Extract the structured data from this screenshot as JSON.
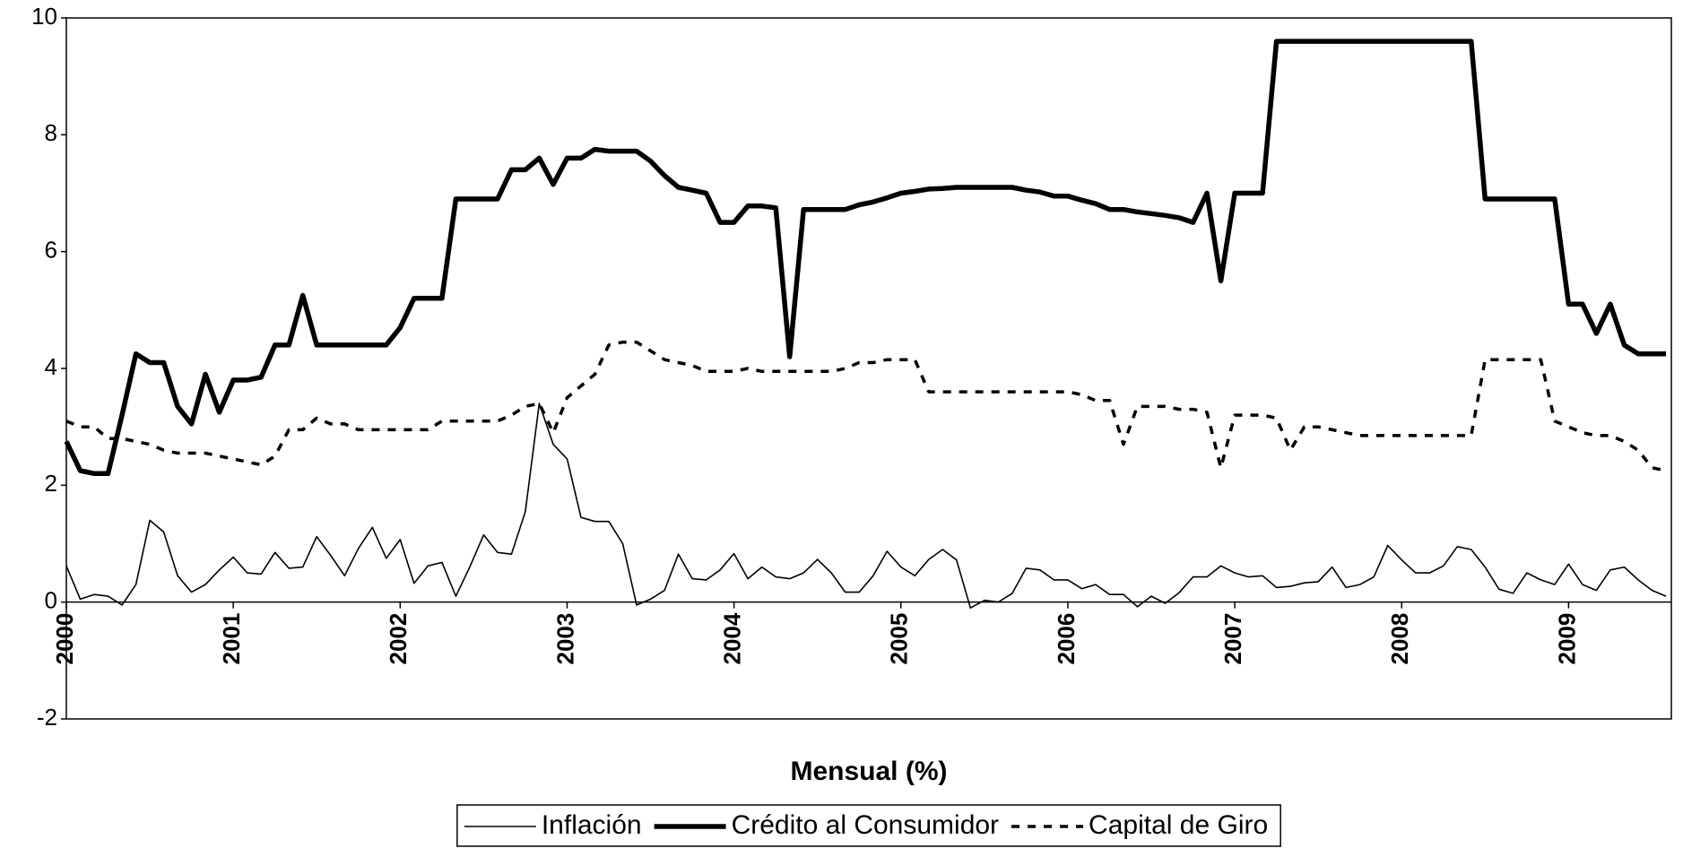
{
  "chart_data": {
    "type": "line",
    "xlabel": "Mensual (%)",
    "categories": [
      "2000",
      null,
      null,
      null,
      null,
      null,
      null,
      null,
      null,
      null,
      null,
      null,
      "2001",
      null,
      null,
      null,
      null,
      null,
      null,
      null,
      null,
      null,
      null,
      null,
      "2002",
      null,
      null,
      null,
      null,
      null,
      null,
      null,
      null,
      null,
      null,
      null,
      "2003",
      null,
      null,
      null,
      null,
      null,
      null,
      null,
      null,
      null,
      null,
      null,
      "2004",
      null,
      null,
      null,
      null,
      null,
      null,
      null,
      null,
      null,
      null,
      null,
      "2005",
      null,
      null,
      null,
      null,
      null,
      null,
      null,
      null,
      null,
      null,
      null,
      "2006",
      null,
      null,
      null,
      null,
      null,
      null,
      null,
      null,
      null,
      null,
      null,
      "2007",
      null,
      null,
      null,
      null,
      null,
      null,
      null,
      null,
      null,
      null,
      null,
      "2008",
      null,
      null,
      null,
      null,
      null,
      null,
      null,
      null,
      null,
      null,
      null,
      "2009",
      null,
      null,
      null,
      null,
      null,
      null,
      null
    ],
    "ylim": [
      -2,
      10
    ],
    "yticks": [
      -2,
      0,
      2,
      4,
      6,
      8,
      10
    ],
    "grid": false,
    "series": [
      {
        "name": "Inflación",
        "color": "#000000",
        "style": "thin",
        "values": [
          0.62,
          0.05,
          0.13,
          0.1,
          -0.05,
          0.3,
          1.4,
          1.2,
          0.45,
          0.17,
          0.3,
          0.55,
          0.77,
          0.5,
          0.48,
          0.85,
          0.58,
          0.6,
          1.12,
          0.8,
          0.45,
          0.92,
          1.28,
          0.75,
          1.07,
          0.32,
          0.62,
          0.68,
          0.1,
          0.6,
          1.15,
          0.85,
          0.82,
          1.55,
          3.4,
          2.7,
          2.45,
          1.45,
          1.38,
          1.38,
          1.0,
          -0.05,
          0.05,
          0.2,
          0.82,
          0.4,
          0.38,
          0.55,
          0.83,
          0.4,
          0.6,
          0.43,
          0.4,
          0.5,
          0.73,
          0.5,
          0.17,
          0.17,
          0.45,
          0.87,
          0.6,
          0.45,
          0.73,
          0.9,
          0.72,
          -0.1,
          0.03,
          0.0,
          0.15,
          0.58,
          0.55,
          0.38,
          0.38,
          0.23,
          0.3,
          0.13,
          0.13,
          -0.08,
          0.1,
          -0.02,
          0.16,
          0.43,
          0.43,
          0.62,
          0.5,
          0.43,
          0.45,
          0.25,
          0.27,
          0.33,
          0.35,
          0.6,
          0.25,
          0.3,
          0.43,
          0.97,
          0.72,
          0.5,
          0.5,
          0.62,
          0.95,
          0.9,
          0.6,
          0.22,
          0.15,
          0.5,
          0.38,
          0.3,
          0.65,
          0.3,
          0.2,
          0.55,
          0.6,
          0.38,
          0.2,
          0.1
        ]
      },
      {
        "name": "Crédito al Consumidor",
        "color": "#000000",
        "style": "thick",
        "values": [
          2.75,
          2.25,
          2.2,
          2.2,
          3.2,
          4.25,
          4.1,
          4.1,
          3.35,
          3.05,
          3.9,
          3.25,
          3.8,
          3.8,
          3.85,
          4.4,
          4.4,
          5.25,
          4.4,
          4.4,
          4.4,
          4.4,
          4.4,
          4.4,
          4.7,
          5.2,
          5.2,
          5.2,
          6.9,
          6.9,
          6.9,
          6.9,
          7.4,
          7.4,
          7.6,
          7.15,
          7.6,
          7.6,
          7.75,
          7.72,
          7.72,
          7.72,
          7.55,
          7.3,
          7.1,
          7.05,
          7.0,
          6.5,
          6.5,
          6.78,
          6.78,
          6.75,
          4.2,
          6.72,
          6.72,
          6.72,
          6.72,
          6.8,
          6.85,
          6.92,
          7.0,
          7.03,
          7.07,
          7.08,
          7.1,
          7.1,
          7.1,
          7.1,
          7.1,
          7.05,
          7.02,
          6.95,
          6.95,
          6.88,
          6.82,
          6.72,
          6.72,
          6.68,
          6.65,
          6.62,
          6.58,
          6.5,
          7.0,
          5.5,
          7.0,
          7.0,
          7.0,
          9.6,
          9.6,
          9.6,
          9.6,
          9.6,
          9.6,
          9.6,
          9.6,
          9.6,
          9.6,
          9.6,
          9.6,
          9.6,
          9.6,
          9.6,
          6.9,
          6.9,
          6.9,
          6.9,
          6.9,
          6.9,
          5.1,
          5.1,
          4.6,
          5.1,
          4.4,
          4.25,
          4.25,
          4.25
        ]
      },
      {
        "name": "Capital de Giro",
        "color": "#000000",
        "style": "dashed",
        "values": [
          3.1,
          3.0,
          3.0,
          2.8,
          2.8,
          2.75,
          2.7,
          2.6,
          2.55,
          2.55,
          2.55,
          2.5,
          2.45,
          2.4,
          2.35,
          2.5,
          2.95,
          2.95,
          3.15,
          3.05,
          3.05,
          2.95,
          2.95,
          2.95,
          2.95,
          2.95,
          2.95,
          3.1,
          3.1,
          3.1,
          3.1,
          3.1,
          3.2,
          3.35,
          3.4,
          2.9,
          3.5,
          3.7,
          3.9,
          4.4,
          4.45,
          4.45,
          4.3,
          4.15,
          4.1,
          4.05,
          3.95,
          3.95,
          3.95,
          4.0,
          3.95,
          3.95,
          3.95,
          3.95,
          3.95,
          3.95,
          4.0,
          4.1,
          4.1,
          4.15,
          4.15,
          4.15,
          3.6,
          3.6,
          3.6,
          3.6,
          3.6,
          3.6,
          3.6,
          3.6,
          3.6,
          3.6,
          3.6,
          3.55,
          3.45,
          3.45,
          2.7,
          3.35,
          3.35,
          3.35,
          3.3,
          3.3,
          3.25,
          2.3,
          3.2,
          3.2,
          3.2,
          3.15,
          2.6,
          3.0,
          3.0,
          2.95,
          2.9,
          2.85,
          2.85,
          2.85,
          2.85,
          2.85,
          2.85,
          2.85,
          2.85,
          2.85,
          4.15,
          4.15,
          4.15,
          4.15,
          4.15,
          3.1,
          3.0,
          2.9,
          2.85,
          2.85,
          2.75,
          2.6,
          2.3,
          2.25
        ]
      }
    ]
  }
}
